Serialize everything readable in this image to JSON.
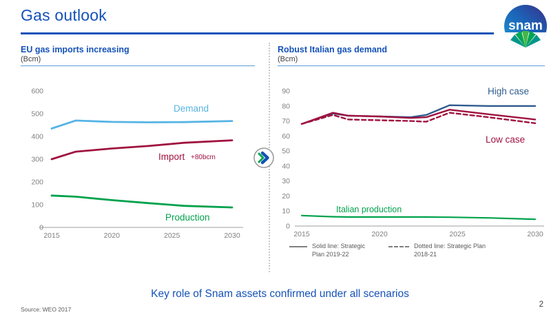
{
  "header": {
    "title": "Gas outlook"
  },
  "logo": {
    "text": "snam"
  },
  "panels": {
    "left": {
      "title": "EU gas imports increasing",
      "unit": "(Bcm)"
    },
    "right": {
      "title": "Robust Italian gas demand",
      "unit": "(Bcm)"
    }
  },
  "divider_icon": "double-chevron-forward",
  "footer": {
    "message": "Key role of Snam assets confirmed under all scenarios",
    "source": "Source: WEO 2017",
    "page": "2"
  },
  "colors": {
    "brand_blue": "#1452B8",
    "demand_light_blue": "#56B4E4",
    "import_red": "#A0123F",
    "production_green": "#00A24C",
    "high_case_blue": "#2E5B8F",
    "axis_gray": "#7F7F7F",
    "axis_line_gray": "#BFBFBF"
  },
  "chart_data": [
    {
      "type": "line",
      "title": "EU gas imports increasing",
      "ylabel": "Bcm",
      "grid": false,
      "xlim": [
        2015,
        2030
      ],
      "ylim": [
        0,
        600
      ],
      "yticks": [
        0,
        100,
        200,
        300,
        400,
        500,
        600
      ],
      "xticks": [
        2015,
        2020,
        2025,
        2030
      ],
      "x": [
        2015,
        2017,
        2020,
        2023,
        2026,
        2030
      ],
      "series": [
        {
          "name": "Demand",
          "color": "#56B4E4",
          "style": "solid",
          "width": 2.8,
          "values": [
            435,
            470,
            464,
            462,
            463,
            468
          ]
        },
        {
          "name": "Import",
          "color": "#A0123F",
          "style": "solid",
          "width": 2.8,
          "values": [
            300,
            333,
            347,
            358,
            372,
            383
          ]
        },
        {
          "name": "Production",
          "color": "#00A24C",
          "style": "solid",
          "width": 2.8,
          "values": [
            140,
            135,
            120,
            107,
            95,
            88
          ]
        }
      ],
      "annotations": [
        {
          "text": "Demand",
          "color": "#56B4E4",
          "x": 222,
          "y": 52,
          "size": 13.5
        },
        {
          "text": "Import",
          "color": "#A0123F",
          "x": 200,
          "y": 122,
          "size": 13.5
        },
        {
          "text": "+80bcm",
          "color": "#A0123F",
          "x": 247,
          "y": 121,
          "size": 10
        },
        {
          "text": "Production",
          "color": "#00A24C",
          "x": 210,
          "y": 210,
          "size": 13.5
        }
      ]
    },
    {
      "type": "line",
      "title": "Robust Italian gas demand",
      "ylabel": "Bcm",
      "grid": false,
      "xlim": [
        2015,
        2030
      ],
      "ylim": [
        0,
        90
      ],
      "yticks": [
        0,
        10,
        20,
        30,
        40,
        50,
        60,
        70,
        80,
        90
      ],
      "xticks": [
        2015,
        2020,
        2025,
        2030
      ],
      "x": [
        2015,
        2017,
        2018,
        2020,
        2022,
        2023,
        2024.5,
        2027,
        2030
      ],
      "series": [
        {
          "name": "High case",
          "color": "#2E5B8F",
          "style": "solid",
          "width": 2.4,
          "values": [
            68,
            75,
            73.5,
            73,
            72.5,
            74,
            80.5,
            80,
            80
          ]
        },
        {
          "name": "Low case",
          "color": "#A0123F",
          "style": "solid",
          "width": 2.4,
          "values": [
            68,
            75.5,
            73.5,
            73,
            72,
            72.5,
            77.5,
            74.5,
            71
          ]
        },
        {
          "name": "Strategic Plan 2018-21 dotted",
          "color": "#A0123F",
          "style": "dashed",
          "width": 2.4,
          "values": [
            68,
            74,
            71,
            70.5,
            70,
            69.5,
            75.5,
            72.5,
            68.5
          ]
        },
        {
          "name": "Italian production",
          "color": "#00A24C",
          "style": "solid",
          "width": 2.2,
          "values": [
            7,
            6.2,
            6,
            6,
            6,
            6,
            5.9,
            5.4,
            4.5
          ]
        }
      ],
      "annotations": [
        {
          "text": "High case",
          "color": "#2E5B8F",
          "x": 308,
          "y": 27,
          "size": 13.5
        },
        {
          "text": "Low case",
          "color": "#A0123F",
          "x": 305,
          "y": 97,
          "size": 13.5
        },
        {
          "text": "Italian production",
          "color": "#00A24C",
          "x": 88,
          "y": 198,
          "size": 12.5
        }
      ],
      "legend": [
        {
          "swatch": "solid",
          "label": "Solid line: Strategic Plan 2019-22"
        },
        {
          "swatch": "dashed",
          "label": "Dotted line: Strategic Plan 2018-21"
        }
      ],
      "legend_position": "bottom"
    }
  ]
}
